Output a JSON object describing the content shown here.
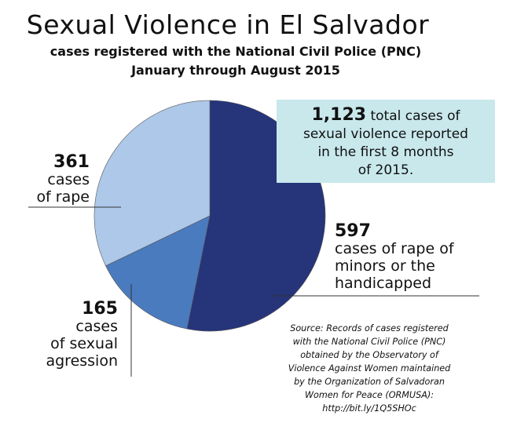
{
  "title": "Sexual Violence in El Salvador",
  "subtitle_1": "cases registered with the National Civil Police (PNC)",
  "subtitle_2": "January through August 2015",
  "callout": {
    "number": "1,123",
    "text_1": " total cases of",
    "text_2": "sexual violence reported",
    "text_3": "in the first 8 months",
    "text_4": "of 2015."
  },
  "labels": {
    "rape": {
      "number": "361",
      "line1": "cases",
      "line2": "of rape"
    },
    "aggression": {
      "number": "165",
      "line1": "cases",
      "line2": "of sexual",
      "line3": "agression"
    },
    "minors": {
      "number": "597",
      "line1": "cases of rape of",
      "line2": "minors or the",
      "line3": "handicapped"
    }
  },
  "source": [
    "Source: Records of cases registered",
    "with the National Civil Police (PNC)",
    "obtained by the Observatory of",
    "Violence Against Women maintained",
    "by the Organization of Salvadoran",
    "Women for Peace (ORMUSA):",
    "http://bit.ly/1Q5SHOc"
  ],
  "chart_data": {
    "type": "pie",
    "total": 1123,
    "slices": [
      {
        "label": "cases of rape of minors or the handicapped",
        "value": 597,
        "color": "#26347a"
      },
      {
        "label": "cases of sexual agression",
        "value": 165,
        "color": "#4a7bbf"
      },
      {
        "label": "cases of rape",
        "value": 361,
        "color": "#adc8e8"
      }
    ]
  }
}
